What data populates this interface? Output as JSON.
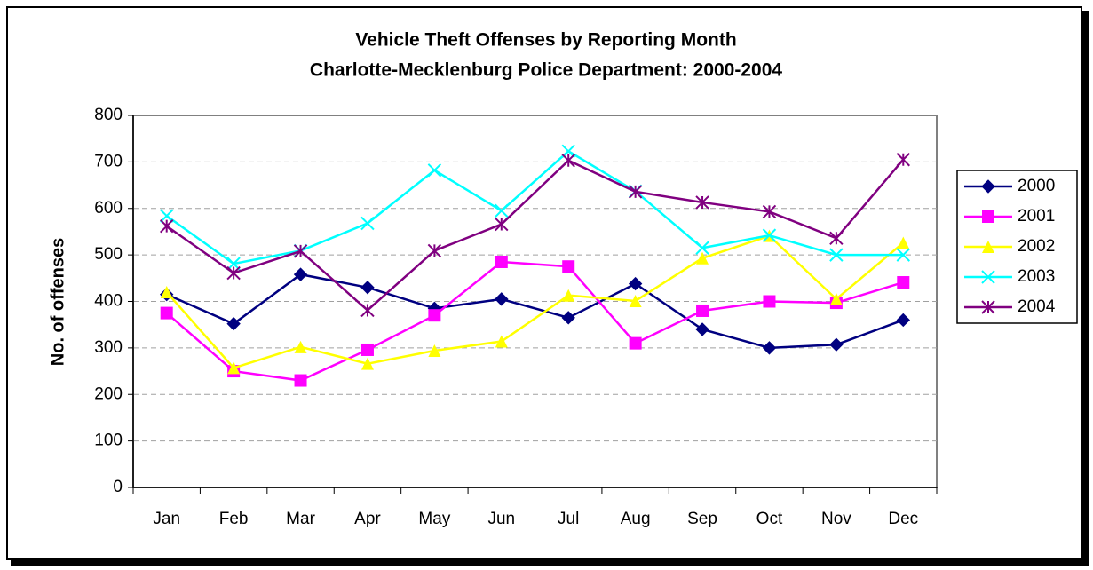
{
  "chart_data": {
    "type": "line",
    "title": [
      "Vehicle Theft Offenses by Reporting Month",
      "Charlotte-Mecklenburg Police Department: 2000-2004"
    ],
    "y_label": "No. of offenses",
    "categories": [
      "Jan",
      "Feb",
      "Mar",
      "Apr",
      "May",
      "Jun",
      "Jul",
      "Aug",
      "Sep",
      "Oct",
      "Nov",
      "Dec"
    ],
    "series": [
      {
        "name": "2000",
        "color": "#000080",
        "marker": "diamond",
        "values": [
          415,
          352,
          458,
          430,
          385,
          405,
          365,
          438,
          340,
          300,
          307,
          360
        ]
      },
      {
        "name": "2001",
        "color": "#ff00ff",
        "marker": "square",
        "values": [
          375,
          250,
          230,
          296,
          370,
          485,
          475,
          310,
          380,
          400,
          397,
          441
        ]
      },
      {
        "name": "2002",
        "color": "#ffff00",
        "marker": "triangle",
        "values": [
          420,
          257,
          302,
          266,
          294,
          314,
          413,
          401,
          493,
          541,
          405,
          526
        ]
      },
      {
        "name": "2003",
        "color": "#00ffff",
        "marker": "x",
        "values": [
          584,
          481,
          509,
          568,
          682,
          595,
          723,
          637,
          515,
          542,
          500,
          500
        ]
      },
      {
        "name": "2004",
        "color": "#800080",
        "marker": "asterisk",
        "values": [
          562,
          461,
          508,
          381,
          509,
          566,
          703,
          636,
          613,
          593,
          536,
          705
        ]
      }
    ],
    "ylim": [
      0,
      800
    ],
    "yticks": [
      0,
      100,
      200,
      300,
      400,
      500,
      600,
      700,
      800
    ],
    "grid": true,
    "legend": "right"
  }
}
